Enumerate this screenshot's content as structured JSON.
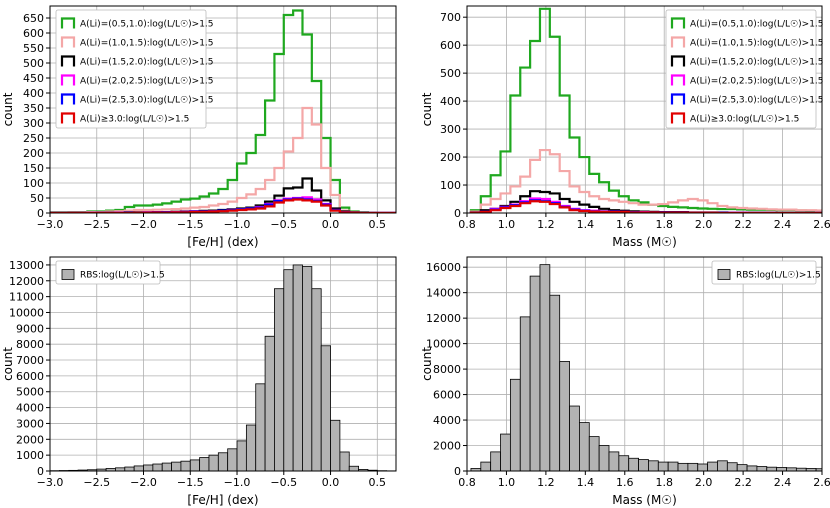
{
  "chart_data": [
    {
      "type": "histogram-step",
      "xlabel": "[Fe/H] (dex)",
      "ylabel": "count",
      "xlim": [
        -3.0,
        0.7
      ],
      "ylim": [
        0,
        690
      ],
      "xticks": [
        "−3.0",
        "−2.5",
        "−2.0",
        "−1.5",
        "−1.0",
        "−0.5",
        "0.0",
        "0.5"
      ],
      "xtick_values": [
        -3.0,
        -2.5,
        -2.0,
        -1.5,
        -1.0,
        -0.5,
        0.0,
        0.5
      ],
      "yticks": [
        "0",
        "50",
        "100",
        "150",
        "200",
        "250",
        "300",
        "350",
        "400",
        "450",
        "500",
        "550",
        "600",
        "650"
      ],
      "ytick_values": [
        0,
        50,
        100,
        150,
        200,
        250,
        300,
        350,
        400,
        450,
        500,
        550,
        600,
        650
      ],
      "bin_start": -3.0,
      "bin_width": 0.1,
      "grid": true,
      "legend_position": "top-left",
      "series": [
        {
          "name": "A(Li)=(0.5,1.0):log(L/L☉)>1.5",
          "color": "#1fa81f",
          "values": [
            2,
            2,
            3,
            3,
            5,
            5,
            8,
            10,
            20,
            25,
            25,
            28,
            32,
            38,
            45,
            48,
            55,
            65,
            80,
            110,
            165,
            200,
            260,
            375,
            530,
            660,
            675,
            595,
            440,
            250,
            110,
            18,
            5,
            2,
            1,
            0,
            0
          ]
        },
        {
          "name": "A(Li)=(1.0,1.5):log(L/L☉)>1.5",
          "color": "#f4a7a7",
          "values": [
            1,
            1,
            2,
            2,
            3,
            3,
            5,
            6,
            8,
            10,
            10,
            11,
            12,
            13,
            15,
            18,
            20,
            25,
            30,
            38,
            50,
            62,
            80,
            110,
            150,
            205,
            250,
            350,
            295,
            150,
            60,
            8,
            3,
            1,
            0,
            0,
            0
          ]
        },
        {
          "name": "A(Li)=(1.5,2.0):log(L/L☉)>1.5",
          "color": "#000000",
          "values": [
            0,
            0,
            0,
            0,
            0,
            1,
            1,
            1,
            2,
            2,
            2,
            3,
            3,
            4,
            5,
            6,
            7,
            8,
            10,
            12,
            15,
            18,
            25,
            38,
            58,
            82,
            85,
            115,
            75,
            42,
            15,
            5,
            2,
            1,
            0,
            0,
            0
          ]
        },
        {
          "name": "A(Li)=(2.0,2.5):log(L/L☉)>1.5",
          "color": "#ff00ff",
          "values": [
            0,
            0,
            0,
            0,
            0,
            0,
            0,
            1,
            1,
            1,
            2,
            2,
            2,
            3,
            4,
            5,
            5,
            6,
            8,
            10,
            12,
            15,
            20,
            30,
            42,
            48,
            50,
            52,
            45,
            30,
            10,
            3,
            1,
            0,
            0,
            0,
            0
          ]
        },
        {
          "name": "A(Li)=(2.5,3.0):log(L/L☉)>1.5",
          "color": "#0000ff",
          "values": [
            0,
            0,
            0,
            0,
            0,
            0,
            0,
            0,
            1,
            1,
            1,
            1,
            2,
            2,
            3,
            4,
            5,
            6,
            8,
            10,
            12,
            15,
            18,
            28,
            40,
            45,
            48,
            45,
            40,
            28,
            10,
            3,
            1,
            0,
            0,
            0,
            0
          ]
        },
        {
          "name": "A(Li)≥3.0:log(L/L☉)>1.5",
          "color": "#e00000",
          "values": [
            0,
            0,
            0,
            0,
            0,
            0,
            0,
            0,
            0,
            1,
            1,
            1,
            1,
            2,
            2,
            3,
            4,
            5,
            6,
            8,
            10,
            12,
            15,
            22,
            35,
            42,
            45,
            42,
            38,
            25,
            8,
            2,
            1,
            0,
            0,
            0,
            0
          ]
        }
      ]
    },
    {
      "type": "histogram-step",
      "xlabel": "Mass (M☉)",
      "ylabel": "count",
      "xlim": [
        0.8,
        2.6
      ],
      "ylim": [
        0,
        740
      ],
      "xticks": [
        "0.8",
        "1.0",
        "1.2",
        "1.4",
        "1.6",
        "1.8",
        "2.0",
        "2.2",
        "2.4",
        "2.6"
      ],
      "xtick_values": [
        0.8,
        1.0,
        1.2,
        1.4,
        1.6,
        1.8,
        2.0,
        2.2,
        2.4,
        2.6
      ],
      "yticks": [
        "0",
        "100",
        "200",
        "300",
        "400",
        "500",
        "600",
        "700"
      ],
      "ytick_values": [
        0,
        100,
        200,
        300,
        400,
        500,
        600,
        700
      ],
      "bin_start": 0.82,
      "bin_width": 0.05,
      "grid": true,
      "legend_position": "top-right",
      "series": [
        {
          "name": "A(Li)=(0.5,1.0):log(L/L☉)>1.5",
          "color": "#1fa81f",
          "values": [
            10,
            60,
            135,
            220,
            420,
            520,
            615,
            730,
            630,
            420,
            270,
            200,
            140,
            110,
            80,
            60,
            45,
            38,
            30,
            25,
            22,
            20,
            18,
            16,
            15,
            14,
            14,
            13,
            12,
            12,
            11,
            10,
            10,
            9,
            8,
            8
          ]
        },
        {
          "name": "A(Li)=(1.0,1.5):log(L/L☉)>1.5",
          "color": "#f4a7a7",
          "values": [
            5,
            30,
            50,
            70,
            95,
            130,
            190,
            225,
            210,
            150,
            95,
            75,
            60,
            50,
            45,
            40,
            35,
            30,
            30,
            32,
            38,
            45,
            50,
            45,
            35,
            25,
            20,
            18,
            16,
            15,
            13,
            12,
            12,
            10,
            10,
            9
          ]
        },
        {
          "name": "A(Li)=(1.5,2.0):log(L/L☉)>1.5",
          "color": "#000000",
          "values": [
            2,
            10,
            15,
            25,
            40,
            60,
            78,
            75,
            70,
            50,
            40,
            30,
            22,
            15,
            10,
            8,
            6,
            5,
            4,
            3,
            3,
            3,
            2,
            2,
            2,
            2,
            1,
            1,
            1,
            1,
            1,
            0,
            0,
            0,
            0,
            0
          ]
        },
        {
          "name": "A(Li)=(2.0,2.5):log(L/L☉)>1.5",
          "color": "#ff00ff",
          "values": [
            1,
            5,
            15,
            22,
            30,
            42,
            52,
            50,
            40,
            25,
            15,
            10,
            8,
            6,
            5,
            4,
            3,
            3,
            2,
            2,
            2,
            2,
            1,
            1,
            1,
            1,
            1,
            1,
            0,
            0,
            0,
            0,
            0,
            0,
            0,
            0
          ]
        },
        {
          "name": "A(Li)=(2.5,3.0):log(L/L☉)>1.5",
          "color": "#0000ff",
          "values": [
            1,
            5,
            12,
            20,
            28,
            38,
            45,
            42,
            35,
            22,
            12,
            8,
            6,
            5,
            4,
            3,
            3,
            2,
            2,
            2,
            1,
            1,
            1,
            1,
            1,
            1,
            0,
            0,
            0,
            0,
            0,
            0,
            0,
            0,
            0,
            0
          ]
        },
        {
          "name": "A(Li)≥3.0:log(L/L☉)>1.5",
          "color": "#e00000",
          "values": [
            1,
            4,
            10,
            18,
            25,
            35,
            42,
            40,
            32,
            20,
            10,
            7,
            5,
            4,
            3,
            3,
            2,
            2,
            2,
            1,
            1,
            1,
            1,
            1,
            1,
            0,
            0,
            0,
            0,
            0,
            0,
            0,
            0,
            0,
            0,
            0
          ]
        }
      ]
    },
    {
      "type": "histogram-bar",
      "xlabel": "[Fe/H] (dex)",
      "ylabel": "count",
      "xlim": [
        -3.0,
        0.7
      ],
      "ylim": [
        0,
        13500
      ],
      "xticks": [
        "−3.0",
        "−2.5",
        "−2.0",
        "−1.5",
        "−1.0",
        "−0.5",
        "0.0",
        "0.5"
      ],
      "xtick_values": [
        -3.0,
        -2.5,
        -2.0,
        -1.5,
        -1.0,
        -0.5,
        0.0,
        0.5
      ],
      "yticks": [
        "0",
        "1000",
        "2000",
        "3000",
        "4000",
        "5000",
        "6000",
        "7000",
        "8000",
        "9000",
        "10000",
        "11000",
        "12000",
        "13000"
      ],
      "ytick_values": [
        0,
        1000,
        2000,
        3000,
        4000,
        5000,
        6000,
        7000,
        8000,
        9000,
        10000,
        11000,
        12000,
        13000
      ],
      "bin_start": -3.0,
      "bin_width": 0.1,
      "grid": true,
      "legend_position": "top-left",
      "series": [
        {
          "name": "RBS:log(L/L☉)>1.5",
          "color": "#b3b3b3",
          "values": [
            20,
            30,
            40,
            60,
            80,
            120,
            160,
            200,
            250,
            320,
            380,
            440,
            500,
            560,
            620,
            700,
            850,
            1000,
            1150,
            1400,
            1900,
            2900,
            5500,
            8500,
            11500,
            12700,
            13000,
            12900,
            11500,
            7900,
            3200,
            1200,
            300,
            100,
            50,
            20,
            10
          ]
        }
      ]
    },
    {
      "type": "histogram-bar",
      "xlabel": "Mass (M☉)",
      "ylabel": "count",
      "xlim": [
        0.8,
        2.6
      ],
      "ylim": [
        0,
        16800
      ],
      "xticks": [
        "0.8",
        "1.0",
        "1.2",
        "1.4",
        "1.6",
        "1.8",
        "2.0",
        "2.2",
        "2.4",
        "2.6"
      ],
      "xtick_values": [
        0.8,
        1.0,
        1.2,
        1.4,
        1.6,
        1.8,
        2.0,
        2.2,
        2.4,
        2.6
      ],
      "yticks": [
        "0",
        "2000",
        "4000",
        "6000",
        "8000",
        "10000",
        "12000",
        "14000",
        "16000"
      ],
      "ytick_values": [
        0,
        2000,
        4000,
        6000,
        8000,
        10000,
        12000,
        14000,
        16000
      ],
      "bin_start": 0.82,
      "bin_width": 0.05,
      "grid": true,
      "legend_position": "top-right",
      "series": [
        {
          "name": "RBS:log(L/L☉)>1.5",
          "color": "#b3b3b3",
          "values": [
            200,
            700,
            1500,
            2900,
            7200,
            12100,
            15300,
            16200,
            13800,
            8600,
            5100,
            3800,
            2700,
            2000,
            1500,
            1200,
            1000,
            900,
            800,
            700,
            700,
            600,
            600,
            550,
            700,
            800,
            650,
            500,
            400,
            350,
            300,
            280,
            250,
            220,
            200,
            180
          ]
        }
      ]
    }
  ]
}
